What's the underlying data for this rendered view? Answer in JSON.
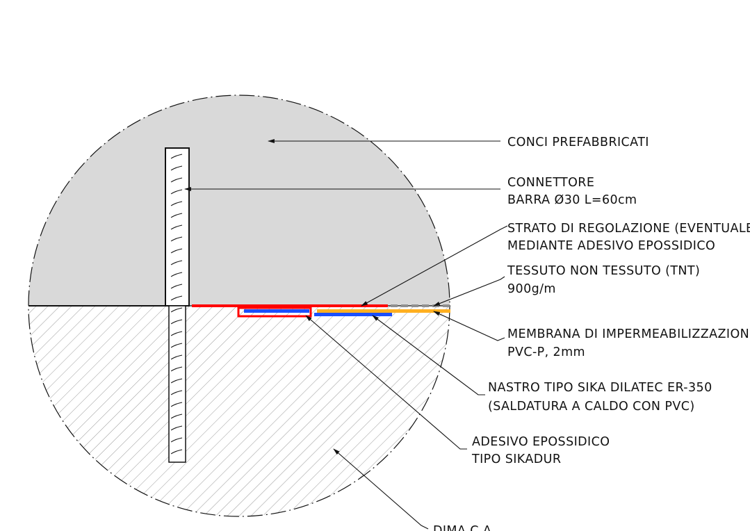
{
  "labels": {
    "conci": "CONCI PREFABBRICATI",
    "connettore_1": "CONNETTORE",
    "connettore_2": "BARRA Ø30 L=60cm",
    "strato_1": "STRATO DI REGOLAZIONE (EVENTUALE)",
    "strato_2": "MEDIANTE ADESIVO EPOSSIDICO",
    "tessuto_1": "TESSUTO NON TESSUTO (TNT)",
    "tessuto_2": "900g/m",
    "membrana_1": "MEMBRANA DI IMPERMEABILIZZAZIONE",
    "membrana_2": "PVC-P, 2mm",
    "nastro_1": "NASTRO TIPO SIKA DILATEC ER-350",
    "nastro_2": "(SALDATURA A CALDO CON PVC)",
    "adesivo_1": "ADESIVO EPOSSIDICO",
    "adesivo_2": "TIPO SIKADUR",
    "dima": "DIMA C.A."
  },
  "colors": {
    "concrete_fill": "#d9d9d9",
    "hatch": "#9a9a9a",
    "outline": "#111111",
    "epoxy_regulation": "#ff0000",
    "membrane": "#ffb020",
    "tape": "#1a4fff",
    "geotextile": "#909090"
  }
}
